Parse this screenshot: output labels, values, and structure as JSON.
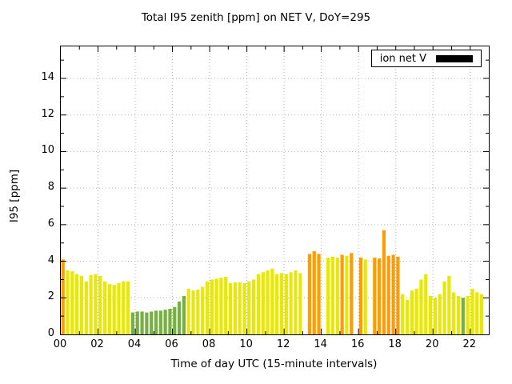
{
  "chart_data": {
    "type": "bar",
    "title": "Total I95 zenith [ppm] on NET V, DoY=295",
    "xlabel": "Time of day UTC (15-minute intervals)",
    "ylabel": "I95 [ppm]",
    "legend": {
      "label": "ion net V",
      "swatch_color": "#000000"
    },
    "xlim": [
      0,
      23
    ],
    "ylim": [
      0,
      15.75
    ],
    "xticks": [
      {
        "h": 0,
        "label": "00"
      },
      {
        "h": 2,
        "label": "02"
      },
      {
        "h": 4,
        "label": "04"
      },
      {
        "h": 6,
        "label": "06"
      },
      {
        "h": 8,
        "label": "08"
      },
      {
        "h": 10,
        "label": "10"
      },
      {
        "h": 12,
        "label": "12"
      },
      {
        "h": 14,
        "label": "14"
      },
      {
        "h": 16,
        "label": "16"
      },
      {
        "h": 18,
        "label": "18"
      },
      {
        "h": 20,
        "label": "20"
      },
      {
        "h": 22,
        "label": "22"
      }
    ],
    "yticks": [
      0,
      2,
      4,
      6,
      8,
      10,
      12,
      14
    ],
    "grid": true,
    "grid_color": "#b0b0b0",
    "bar_interval_hours": 0.25,
    "colors": {
      "y": "#e8e800",
      "g": "#76b041",
      "o": "#ff9c00"
    },
    "bars": [
      [
        0,
        4.1,
        "o"
      ],
      [
        0.25,
        3.5,
        "y"
      ],
      [
        0.5,
        3.45,
        "y"
      ],
      [
        0.75,
        3.3,
        "y"
      ],
      [
        1,
        3.2,
        "y"
      ],
      [
        1.25,
        2.9,
        "y"
      ],
      [
        1.5,
        3.25,
        "y"
      ],
      [
        1.75,
        3.3,
        "y"
      ],
      [
        2,
        3.2,
        "y"
      ],
      [
        2.25,
        2.9,
        "y"
      ],
      [
        2.5,
        2.75,
        "y"
      ],
      [
        2.75,
        2.7,
        "y"
      ],
      [
        3,
        2.8,
        "y"
      ],
      [
        3.25,
        2.9,
        "y"
      ],
      [
        3.5,
        2.9,
        "y"
      ],
      [
        3.75,
        1.2,
        "g"
      ],
      [
        4,
        1.25,
        "g"
      ],
      [
        4.25,
        1.25,
        "g"
      ],
      [
        4.5,
        1.2,
        "g"
      ],
      [
        4.75,
        1.25,
        "g"
      ],
      [
        5,
        1.3,
        "g"
      ],
      [
        5.25,
        1.3,
        "g"
      ],
      [
        5.5,
        1.35,
        "g"
      ],
      [
        5.75,
        1.4,
        "g"
      ],
      [
        6,
        1.5,
        "g"
      ],
      [
        6.25,
        1.8,
        "g"
      ],
      [
        6.5,
        2.1,
        "g"
      ],
      [
        6.75,
        2.5,
        "y"
      ],
      [
        7,
        2.4,
        "y"
      ],
      [
        7.25,
        2.45,
        "y"
      ],
      [
        7.5,
        2.6,
        "y"
      ],
      [
        7.75,
        2.9,
        "y"
      ],
      [
        8,
        3.0,
        "y"
      ],
      [
        8.25,
        3.05,
        "y"
      ],
      [
        8.5,
        3.1,
        "y"
      ],
      [
        8.75,
        3.15,
        "y"
      ],
      [
        9,
        2.8,
        "y"
      ],
      [
        9.25,
        2.85,
        "y"
      ],
      [
        9.5,
        2.85,
        "y"
      ],
      [
        9.75,
        2.8,
        "y"
      ],
      [
        10,
        2.9,
        "y"
      ],
      [
        10.25,
        3.0,
        "y"
      ],
      [
        10.5,
        3.3,
        "y"
      ],
      [
        10.75,
        3.4,
        "y"
      ],
      [
        11,
        3.5,
        "y"
      ],
      [
        11.25,
        3.6,
        "y"
      ],
      [
        11.5,
        3.3,
        "y"
      ],
      [
        11.75,
        3.35,
        "y"
      ],
      [
        12,
        3.3,
        "y"
      ],
      [
        12.25,
        3.4,
        "y"
      ],
      [
        12.5,
        3.5,
        "y"
      ],
      [
        12.75,
        3.35,
        "y"
      ],
      [
        13.25,
        4.4,
        "o"
      ],
      [
        13.5,
        4.55,
        "o"
      ],
      [
        13.75,
        4.4,
        "o"
      ],
      [
        14.25,
        4.2,
        "y"
      ],
      [
        14.5,
        4.25,
        "y"
      ],
      [
        14.75,
        4.2,
        "y"
      ],
      [
        15,
        4.35,
        "o"
      ],
      [
        15.25,
        4.3,
        "y"
      ],
      [
        15.5,
        4.45,
        "o"
      ],
      [
        16,
        4.2,
        "o"
      ],
      [
        16.25,
        4.1,
        "y"
      ],
      [
        16.75,
        4.2,
        "o"
      ],
      [
        17,
        4.15,
        "o"
      ],
      [
        17.25,
        5.7,
        "o"
      ],
      [
        17.5,
        4.3,
        "o"
      ],
      [
        17.75,
        4.35,
        "o"
      ],
      [
        18,
        4.25,
        "o"
      ],
      [
        18.25,
        2.2,
        "y"
      ],
      [
        18.5,
        1.9,
        "y"
      ],
      [
        18.75,
        2.4,
        "y"
      ],
      [
        19,
        2.5,
        "y"
      ],
      [
        19.25,
        3.0,
        "y"
      ],
      [
        19.5,
        3.3,
        "y"
      ],
      [
        19.75,
        2.1,
        "y"
      ],
      [
        20,
        2.0,
        "y"
      ],
      [
        20.25,
        2.2,
        "y"
      ],
      [
        20.5,
        2.9,
        "y"
      ],
      [
        20.75,
        3.2,
        "y"
      ],
      [
        21,
        2.3,
        "y"
      ],
      [
        21.25,
        2.1,
        "y"
      ],
      [
        21.5,
        2.0,
        "g"
      ],
      [
        21.75,
        2.1,
        "y"
      ],
      [
        22,
        2.5,
        "y"
      ],
      [
        22.25,
        2.3,
        "y"
      ],
      [
        22.5,
        2.2,
        "y"
      ]
    ]
  }
}
